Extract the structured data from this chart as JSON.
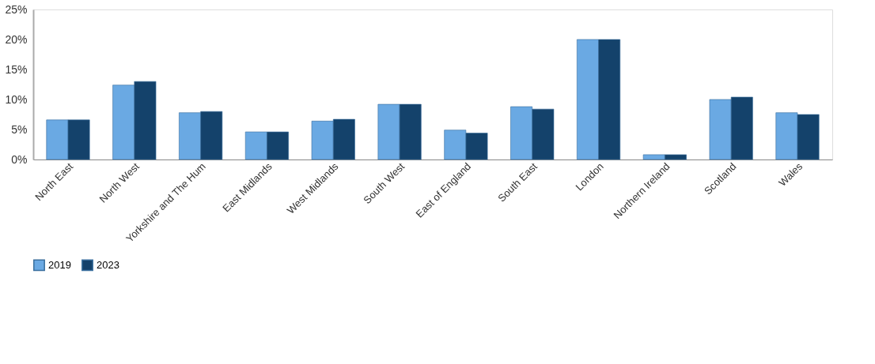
{
  "chart_data": {
    "type": "bar",
    "categories": [
      "North East",
      "North West",
      "Yorkshire and The Hum",
      "East Midlands",
      "West Midlands",
      "South West",
      "East of England",
      "South East",
      "London",
      "Northern Ireland",
      "Scotland",
      "Wales"
    ],
    "series": [
      {
        "name": "2019",
        "color": "#6aa9e3",
        "values": [
          6.6,
          12.4,
          7.8,
          4.6,
          6.4,
          9.2,
          4.9,
          8.8,
          20.0,
          0.8,
          10.0,
          7.8
        ]
      },
      {
        "name": "2023",
        "color": "#14426b",
        "values": [
          6.6,
          13.0,
          8.0,
          4.6,
          6.7,
          9.2,
          4.4,
          8.4,
          20.0,
          0.8,
          10.4,
          7.5
        ]
      }
    ],
    "ylim": [
      0,
      25
    ],
    "yticks": [
      {
        "value": 0,
        "label": "0%"
      },
      {
        "value": 5,
        "label": "5%"
      },
      {
        "value": 10,
        "label": "10%"
      },
      {
        "value": 15,
        "label": "15%"
      },
      {
        "value": 20,
        "label": "20%"
      },
      {
        "value": 25,
        "label": "25%"
      }
    ],
    "grid": false,
    "legend": "bottom"
  }
}
